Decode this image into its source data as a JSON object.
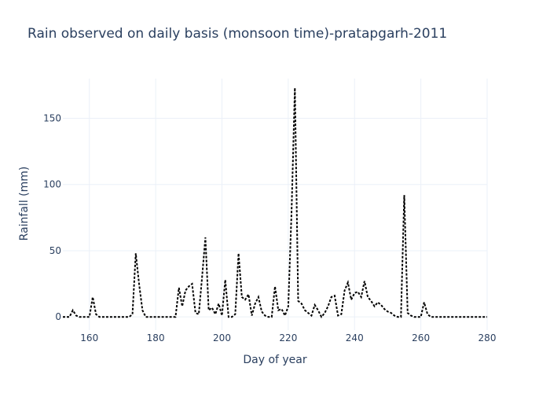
{
  "chart_data": {
    "type": "line",
    "title": "Rain observed on daily basis (monsoon time)-pratapgarh-2011",
    "xlabel": "Day of year",
    "ylabel": "Rainfall (mm)",
    "xlim": [
      152,
      280
    ],
    "ylim": [
      -10,
      180
    ],
    "xticks": [
      160,
      180,
      200,
      220,
      240,
      260,
      280
    ],
    "yticks": [
      0,
      50,
      100,
      150
    ],
    "grid": true,
    "line_style": "dotted",
    "line_color": "#000000",
    "series": [
      {
        "x": [
          152,
          153,
          154,
          155,
          156,
          157,
          158,
          159,
          160,
          161,
          162,
          163,
          164,
          165,
          166,
          167,
          168,
          169,
          170,
          171,
          172,
          173,
          174,
          175,
          176,
          177,
          178,
          179,
          180,
          181,
          182,
          183,
          184,
          185,
          186,
          187,
          188,
          189,
          190,
          191,
          192,
          193,
          194,
          195,
          196,
          197,
          198,
          199,
          200,
          201,
          202,
          203,
          204,
          205,
          206,
          207,
          208,
          209,
          210,
          211,
          212,
          213,
          214,
          215,
          216,
          217,
          218,
          219,
          220,
          221,
          222,
          223,
          224,
          225,
          226,
          227,
          228,
          229,
          230,
          231,
          232,
          233,
          234,
          235,
          236,
          237,
          238,
          239,
          240,
          241,
          242,
          243,
          244,
          245,
          246,
          247,
          248,
          249,
          250,
          251,
          252,
          253,
          254,
          255,
          256,
          257,
          258,
          259,
          260,
          261,
          262,
          263,
          264,
          265,
          266,
          267,
          268,
          269,
          270,
          271,
          272,
          273,
          274,
          275,
          276,
          277,
          278,
          279,
          280
        ],
        "y": [
          0,
          0,
          0,
          5,
          1,
          0,
          0,
          0,
          0,
          15,
          2,
          0,
          0,
          0,
          0,
          0,
          0,
          0,
          0,
          0,
          0,
          2,
          48,
          25,
          5,
          0,
          0,
          0,
          0,
          0,
          0,
          0,
          0,
          0,
          0,
          22,
          8,
          20,
          23,
          25,
          3,
          2,
          30,
          60,
          5,
          7,
          2,
          10,
          1,
          28,
          0,
          0,
          2,
          48,
          15,
          13,
          17,
          1,
          10,
          15,
          4,
          1,
          0,
          0,
          23,
          5,
          6,
          1,
          8,
          80,
          173,
          12,
          10,
          5,
          3,
          1,
          9,
          5,
          0,
          3,
          8,
          15,
          16,
          1,
          2,
          20,
          26,
          13,
          18,
          19,
          15,
          27,
          15,
          12,
          8,
          11,
          9,
          6,
          4,
          3,
          1,
          0,
          0,
          92,
          3,
          1,
          0,
          0,
          0,
          11,
          2,
          0,
          0,
          0,
          0,
          0,
          0,
          0,
          0,
          0,
          0,
          0,
          0,
          0,
          0,
          0,
          0,
          0,
          0
        ]
      }
    ]
  }
}
